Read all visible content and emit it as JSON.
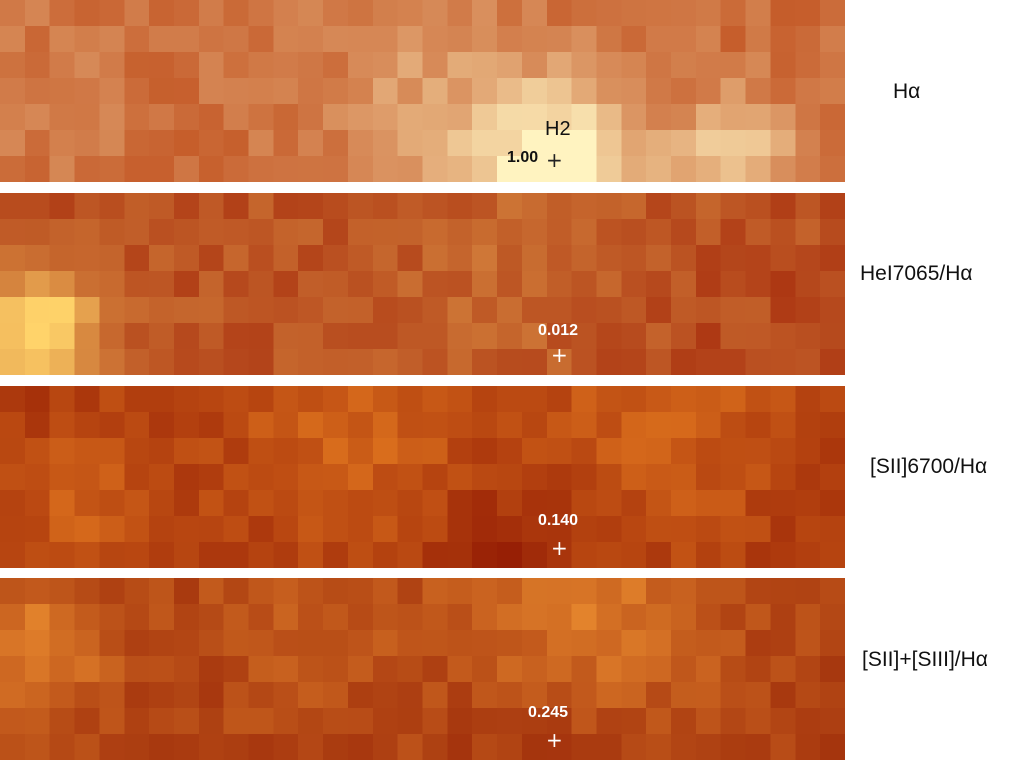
{
  "panels": [
    {
      "label": "Hα",
      "value": "1.00",
      "region": "H2",
      "seed": 11,
      "kind": "ha",
      "colors": {
        "low": "#b83a08",
        "high": "#fff3c0"
      }
    },
    {
      "label": "HeI7065/Hα",
      "value": "0.012",
      "seed": 27,
      "kind": "hei",
      "colors": {
        "low": "#a01f05",
        "high": "#ffd36a"
      }
    },
    {
      "label": "[SII]6700/Hα",
      "value": "0.140",
      "seed": 53,
      "kind": "sii",
      "colors": {
        "low": "#8e1502",
        "high": "#ff9a2a"
      }
    },
    {
      "label": "[SII]+[SIII]/Hα",
      "value": "0.245",
      "seed": 71,
      "kind": "siii",
      "colors": {
        "low": "#901a03",
        "high": "#ffa73a"
      }
    }
  ],
  "icons": {
    "marker": "plus-marker-icon"
  }
}
